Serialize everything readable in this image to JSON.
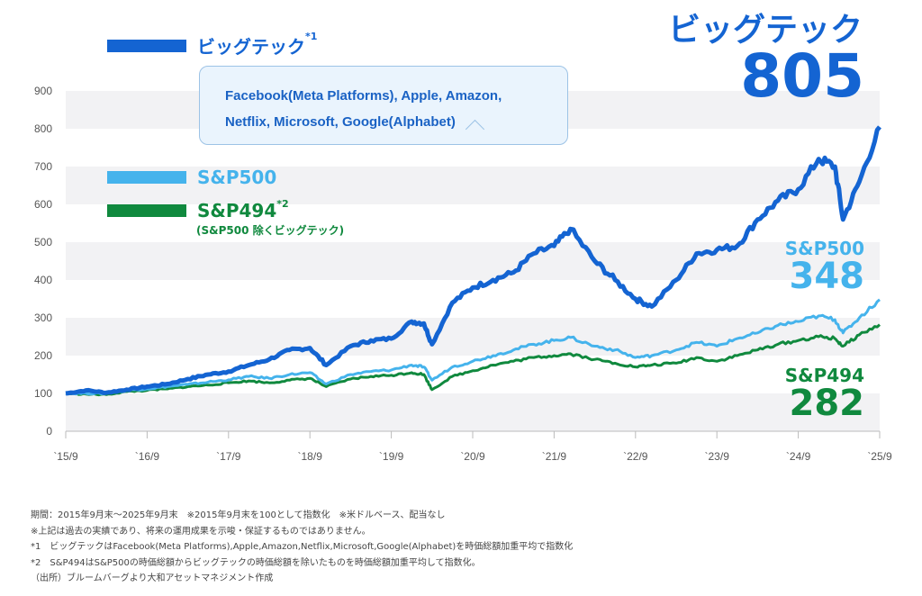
{
  "colors": {
    "bigtech": "#1464d2",
    "sp500": "#45b3ec",
    "sp494": "#10893e",
    "band": "#f2f2f4",
    "axis": "#bbbbbb"
  },
  "legend": {
    "bigtech": {
      "label": "ビッグテック",
      "note": "*1"
    },
    "sp500": {
      "label": "S&P500"
    },
    "sp494": {
      "label": "S&P494",
      "note": "*2",
      "sub": "(S&P500 除くビッグテック)"
    }
  },
  "callout": {
    "line1": "Facebook(Meta Platforms), Apple, Amazon,",
    "line2": "Netflix, Microsoft, Google(Alphabet)"
  },
  "end_labels": {
    "bigtech": {
      "name": "ビッグテック",
      "value": "805"
    },
    "sp500": {
      "name": "S&P500",
      "value": "348"
    },
    "sp494": {
      "name": "S&P494",
      "value": "282"
    }
  },
  "notes": [
    "期間：2015年9月末〜2025年9月末　※2015年9月末を100として指数化　※米ドルベース、配当なし",
    "※上記は過去の実績であり、将来の運用成果を示唆・保証するものではありません。",
    "*1　ビッグテックはFacebook(Meta Platforms),Apple,Amazon,Netflix,Microsoft,Google(Alphabet)を時価総額加重平均で指数化",
    "*2　S&P494はS&P500の時価総額からビッグテックの時価総額を除いたものを時価総額加重平均して指数化。",
    "（出所）ブルームバーグより大和アセットマネジメント作成"
  ],
  "chart_data": {
    "type": "line",
    "title": "",
    "xlabel": "",
    "ylabel": "",
    "ylim": [
      0,
      900
    ],
    "yticks": [
      0,
      100,
      200,
      300,
      400,
      500,
      600,
      700,
      800,
      900
    ],
    "xticks": [
      "`15/9",
      "`16/9",
      "`17/9",
      "`18/9",
      "`19/9",
      "`20/9",
      "`21/9",
      "`22/9",
      "`23/9",
      "`24/9",
      "`25/9"
    ],
    "grid": "alternating horizontal bands",
    "legend_position": "top-left",
    "x": [
      2015.75,
      2016.0,
      2016.25,
      2016.5,
      2016.75,
      2017.0,
      2017.25,
      2017.5,
      2017.75,
      2018.0,
      2018.25,
      2018.5,
      2018.75,
      2018.95,
      2019.25,
      2019.5,
      2019.75,
      2020.0,
      2020.15,
      2020.25,
      2020.5,
      2020.75,
      2021.0,
      2021.25,
      2021.5,
      2021.75,
      2021.95,
      2022.25,
      2022.5,
      2022.75,
      2022.95,
      2023.25,
      2023.5,
      2023.75,
      2024.0,
      2024.25,
      2024.5,
      2024.75,
      2025.0,
      2025.2,
      2025.3,
      2025.5,
      2025.75
    ],
    "series": [
      {
        "name": "ビッグテック",
        "values": [
          100,
          108,
          102,
          110,
          118,
          125,
          138,
          150,
          158,
          175,
          190,
          215,
          220,
          175,
          225,
          240,
          245,
          290,
          285,
          230,
          340,
          380,
          400,
          420,
          470,
          490,
          535,
          450,
          400,
          350,
          330,
          400,
          470,
          480,
          490,
          560,
          610,
          640,
          720,
          700,
          560,
          660,
          805
        ]
      },
      {
        "name": "S&P500",
        "values": [
          100,
          100,
          100,
          108,
          112,
          118,
          124,
          130,
          136,
          145,
          140,
          150,
          155,
          125,
          150,
          158,
          162,
          175,
          170,
          135,
          170,
          185,
          200,
          215,
          230,
          240,
          248,
          225,
          215,
          195,
          200,
          215,
          235,
          225,
          245,
          260,
          280,
          290,
          305,
          295,
          260,
          300,
          348
        ]
      },
      {
        "name": "S&P494",
        "values": [
          100,
          98,
          97,
          105,
          108,
          112,
          118,
          122,
          128,
          133,
          128,
          135,
          140,
          118,
          138,
          145,
          148,
          155,
          150,
          110,
          145,
          160,
          175,
          185,
          195,
          200,
          205,
          190,
          180,
          170,
          175,
          180,
          195,
          185,
          200,
          215,
          230,
          240,
          250,
          245,
          225,
          255,
          282
        ]
      }
    ]
  }
}
